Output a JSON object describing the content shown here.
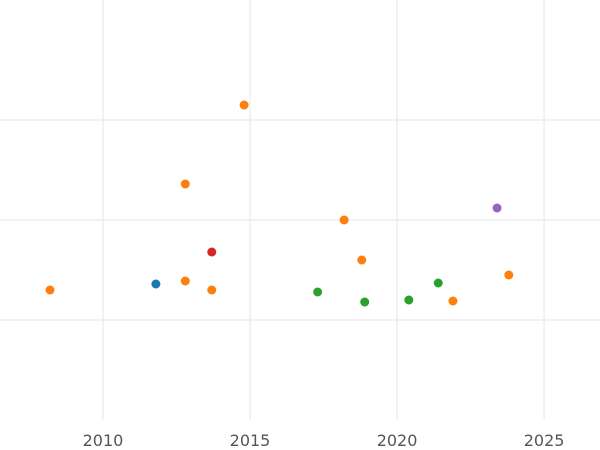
{
  "chart_data": {
    "type": "scatter",
    "title": "",
    "xlabel": "",
    "ylabel": "",
    "xlim": [
      2006.5,
      2026.9
    ],
    "ylim": [
      0,
      4.2
    ],
    "x_ticks": [
      2010,
      2015,
      2020,
      2025
    ],
    "x_tick_labels": [
      "2010",
      "2015",
      "2020",
      "2025"
    ],
    "y_gridlines": [
      1,
      2,
      3
    ],
    "x_gridlines": [
      2010,
      2015,
      2020,
      2025
    ],
    "y_tick_labels_visible": false,
    "grid": true,
    "legend": "none",
    "series": [
      {
        "color": "#1f77b4",
        "points": [
          {
            "x": 2011.8,
            "y": 1.36
          }
        ]
      },
      {
        "color": "#ff7f0e",
        "points": [
          {
            "x": 2008.2,
            "y": 1.3
          },
          {
            "x": 2012.8,
            "y": 1.39
          },
          {
            "x": 2012.8,
            "y": 2.36
          },
          {
            "x": 2013.7,
            "y": 1.3
          },
          {
            "x": 2014.8,
            "y": 3.15
          },
          {
            "x": 2018.2,
            "y": 2.0
          },
          {
            "x": 2018.8,
            "y": 1.6
          },
          {
            "x": 2021.9,
            "y": 1.19
          },
          {
            "x": 2023.8,
            "y": 1.45
          }
        ]
      },
      {
        "color": "#2ca02c",
        "points": [
          {
            "x": 2017.3,
            "y": 1.28
          },
          {
            "x": 2018.9,
            "y": 1.18
          },
          {
            "x": 2020.4,
            "y": 1.2
          },
          {
            "x": 2021.4,
            "y": 1.37
          }
        ]
      },
      {
        "color": "#d62728",
        "points": [
          {
            "x": 2013.7,
            "y": 1.68
          }
        ]
      },
      {
        "color": "#9467bd",
        "points": [
          {
            "x": 2023.4,
            "y": 2.12
          }
        ]
      }
    ]
  }
}
